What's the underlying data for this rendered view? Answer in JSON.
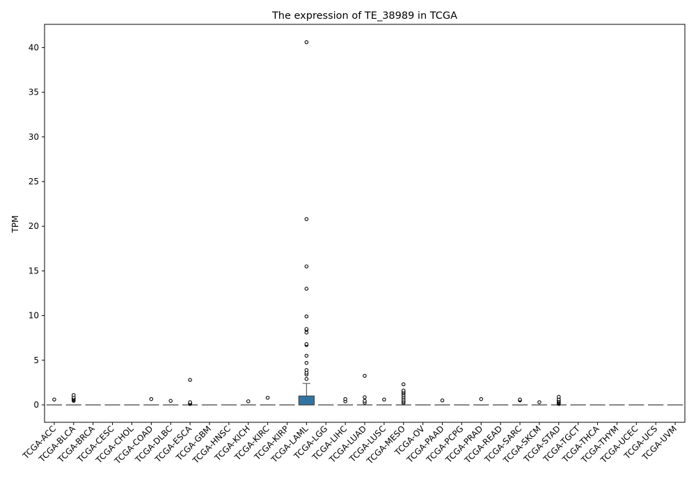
{
  "chart_data": {
    "type": "box",
    "title": "The expression of TE_38989 in TCGA",
    "xlabel": "",
    "ylabel": "TPM",
    "ylim": [
      -1.95,
      42.6
    ],
    "yticks": [
      0,
      5,
      10,
      15,
      20,
      25,
      30,
      35,
      40
    ],
    "grid": false,
    "box_color": "#3274a1",
    "categories": [
      "TCGA-ACC",
      "TCGA-BLCA",
      "TCGA-BRCA",
      "TCGA-CESC",
      "TCGA-CHOL",
      "TCGA-COAD",
      "TCGA-DLBC",
      "TCGA-ESCA",
      "TCGA-GBM",
      "TCGA-HNSC",
      "TCGA-KICH",
      "TCGA-KIRC",
      "TCGA-KIRP",
      "TCGA-LAML",
      "TCGA-LGG",
      "TCGA-LIHC",
      "TCGA-LUAD",
      "TCGA-LUSC",
      "TCGA-MESO",
      "TCGA-OV",
      "TCGA-PAAD",
      "TCGA-PCPG",
      "TCGA-PRAD",
      "TCGA-READ",
      "TCGA-SARC",
      "TCGA-SKCM",
      "TCGA-STAD",
      "TCGA-TGCT",
      "TCGA-THCA",
      "TCGA-THYM",
      "TCGA-UCEC",
      "TCGA-UCS",
      "TCGA-UVM"
    ],
    "boxes": [
      {
        "q1": 0,
        "median": 0,
        "q3": 0,
        "whisker_low": 0,
        "whisker_high": 0,
        "outliers": [
          0.6
        ]
      },
      {
        "q1": 0,
        "median": 0,
        "q3": 0,
        "whisker_low": 0,
        "whisker_high": 0,
        "outliers": [
          0.45,
          0.55,
          0.65,
          0.75,
          0.85,
          1.1
        ]
      },
      {
        "q1": 0,
        "median": 0,
        "q3": 0,
        "whisker_low": 0,
        "whisker_high": 0,
        "outliers": []
      },
      {
        "q1": 0,
        "median": 0,
        "q3": 0,
        "whisker_low": 0,
        "whisker_high": 0,
        "outliers": []
      },
      {
        "q1": 0,
        "median": 0,
        "q3": 0,
        "whisker_low": 0,
        "whisker_high": 0,
        "outliers": []
      },
      {
        "q1": 0,
        "median": 0,
        "q3": 0,
        "whisker_low": 0,
        "whisker_high": 0,
        "outliers": [
          0.65
        ]
      },
      {
        "q1": 0,
        "median": 0,
        "q3": 0,
        "whisker_low": 0,
        "whisker_high": 0,
        "outliers": [
          0.45
        ]
      },
      {
        "q1": 0,
        "median": 0,
        "q3": 0,
        "whisker_low": 0,
        "whisker_high": 0,
        "outliers": [
          0.1,
          0.15,
          0.2,
          0.3,
          2.8
        ]
      },
      {
        "q1": 0,
        "median": 0,
        "q3": 0,
        "whisker_low": 0,
        "whisker_high": 0,
        "outliers": []
      },
      {
        "q1": 0,
        "median": 0,
        "q3": 0,
        "whisker_low": 0,
        "whisker_high": 0,
        "outliers": []
      },
      {
        "q1": 0,
        "median": 0,
        "q3": 0,
        "whisker_low": 0,
        "whisker_high": 0,
        "outliers": [
          0.4
        ]
      },
      {
        "q1": 0,
        "median": 0,
        "q3": 0,
        "whisker_low": 0,
        "whisker_high": 0,
        "outliers": [
          0.8
        ]
      },
      {
        "q1": 0,
        "median": 0,
        "q3": 0,
        "whisker_low": 0,
        "whisker_high": 0,
        "outliers": []
      },
      {
        "q1": 0,
        "median": 0,
        "q3": 1.0,
        "whisker_low": 0,
        "whisker_high": 2.4,
        "outliers": [
          2.9,
          3.4,
          3.6,
          3.9,
          4.7,
          5.5,
          6.7,
          6.8,
          8.1,
          8.4,
          8.5,
          9.9,
          13.0,
          15.5,
          20.8,
          40.6
        ]
      },
      {
        "q1": 0,
        "median": 0,
        "q3": 0,
        "whisker_low": 0,
        "whisker_high": 0,
        "outliers": []
      },
      {
        "q1": 0,
        "median": 0,
        "q3": 0,
        "whisker_low": 0,
        "whisker_high": 0,
        "outliers": [
          0.4,
          0.65
        ]
      },
      {
        "q1": 0,
        "median": 0,
        "q3": 0,
        "whisker_low": 0,
        "whisker_high": 0,
        "outliers": [
          0.25,
          0.45,
          0.85,
          3.25
        ]
      },
      {
        "q1": 0,
        "median": 0,
        "q3": 0,
        "whisker_low": 0,
        "whisker_high": 0,
        "outliers": [
          0.6
        ]
      },
      {
        "q1": 0,
        "median": 0,
        "q3": 0,
        "whisker_low": 0,
        "whisker_high": 0,
        "outliers": [
          0.2,
          0.35,
          0.5,
          0.7,
          0.9,
          1.1,
          1.3,
          1.45,
          1.6,
          2.3
        ]
      },
      {
        "q1": 0,
        "median": 0,
        "q3": 0,
        "whisker_low": 0,
        "whisker_high": 0,
        "outliers": []
      },
      {
        "q1": 0,
        "median": 0,
        "q3": 0,
        "whisker_low": 0,
        "whisker_high": 0,
        "outliers": [
          0.5
        ]
      },
      {
        "q1": 0,
        "median": 0,
        "q3": 0,
        "whisker_low": 0,
        "whisker_high": 0,
        "outliers": []
      },
      {
        "q1": 0,
        "median": 0,
        "q3": 0,
        "whisker_low": 0,
        "whisker_high": 0,
        "outliers": [
          0.65
        ]
      },
      {
        "q1": 0,
        "median": 0,
        "q3": 0,
        "whisker_low": 0,
        "whisker_high": 0,
        "outliers": []
      },
      {
        "q1": 0,
        "median": 0,
        "q3": 0,
        "whisker_low": 0,
        "whisker_high": 0,
        "outliers": [
          0.5,
          0.6
        ]
      },
      {
        "q1": 0,
        "median": 0,
        "q3": 0,
        "whisker_low": 0,
        "whisker_high": 0,
        "outliers": [
          0.3
        ]
      },
      {
        "q1": 0,
        "median": 0,
        "q3": 0,
        "whisker_low": 0,
        "whisker_high": 0,
        "outliers": [
          0.1,
          0.2,
          0.3,
          0.4,
          0.5,
          0.65,
          0.9
        ]
      },
      {
        "q1": 0,
        "median": 0,
        "q3": 0,
        "whisker_low": 0,
        "whisker_high": 0,
        "outliers": []
      },
      {
        "q1": 0,
        "median": 0,
        "q3": 0,
        "whisker_low": 0,
        "whisker_high": 0,
        "outliers": []
      },
      {
        "q1": 0,
        "median": 0,
        "q3": 0,
        "whisker_low": 0,
        "whisker_high": 0,
        "outliers": []
      },
      {
        "q1": 0,
        "median": 0,
        "q3": 0,
        "whisker_low": 0,
        "whisker_high": 0,
        "outliers": []
      },
      {
        "q1": 0,
        "median": 0,
        "q3": 0,
        "whisker_low": 0,
        "whisker_high": 0,
        "outliers": []
      },
      {
        "q1": 0,
        "median": 0,
        "q3": 0,
        "whisker_low": 0,
        "whisker_high": 0,
        "outliers": []
      }
    ]
  }
}
